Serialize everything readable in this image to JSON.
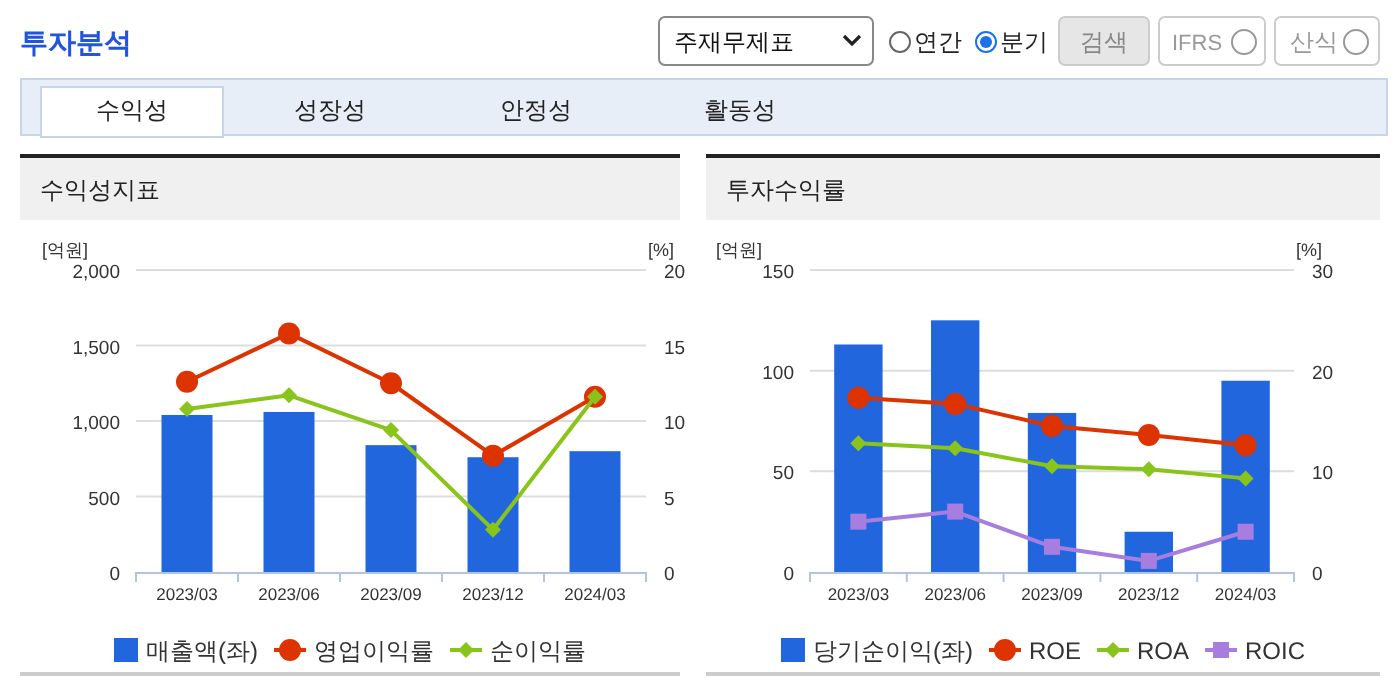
{
  "chart_data": [
    {
      "type": "other",
      "title": "투자분석",
      "annotations": [
        "주재무제표",
        "연간",
        "분기",
        "검색",
        "IFRS",
        "산식",
        "수익성",
        "성장성",
        "안정성",
        "활동성"
      ]
    },
    {
      "type": "bar",
      "title": "수익성지표",
      "ylabel": "[억원]",
      "y2label": "[%]",
      "categories": [
        "2023/03",
        "2023/06",
        "2023/09",
        "2023/12",
        "2024/03"
      ],
      "series": [
        {
          "name": "매출액(좌)",
          "type": "bar",
          "color": "#2266dd",
          "values": [
            1040,
            1060,
            840,
            760,
            800
          ]
        },
        {
          "name": "영업이익률",
          "type": "line",
          "axis": "y2",
          "color": "#dd3300",
          "marker": "circle",
          "values": [
            12.6,
            15.8,
            12.5,
            7.7,
            11.6
          ]
        },
        {
          "name": "순이익률",
          "type": "line",
          "axis": "y2",
          "color": "#88c41a",
          "marker": "diamond",
          "values": [
            10.8,
            11.7,
            9.4,
            2.8,
            11.6
          ]
        }
      ],
      "ylim": [
        0,
        2000
      ],
      "yticks": [
        0,
        {
          "value": 500,
          "label": "500"
        },
        {
          "value": 1000,
          "label": "1,000"
        },
        {
          "value": 1500,
          "label": "1,500"
        },
        {
          "value": 2000,
          "label": "2,000"
        }
      ],
      "y2lim": [
        0,
        20
      ],
      "y2ticks": [
        0,
        5,
        10,
        15,
        20
      ],
      "grid": "y",
      "legend": "bottom"
    },
    {
      "type": "bar",
      "title": "투자수익률",
      "ylabel": "[억원]",
      "y2label": "[%]",
      "categories": [
        "2023/03",
        "2023/06",
        "2023/09",
        "2023/12",
        "2024/03"
      ],
      "series": [
        {
          "name": "당기순이익(좌)",
          "type": "bar",
          "color": "#2266dd",
          "values": [
            113,
            125,
            79,
            20,
            95
          ]
        },
        {
          "name": "ROE",
          "type": "line",
          "axis": "y2",
          "color": "#dd3300",
          "marker": "circle",
          "values": [
            17.3,
            16.7,
            14.5,
            13.6,
            12.6
          ]
        },
        {
          "name": "ROA",
          "type": "line",
          "axis": "y2",
          "color": "#88c41a",
          "marker": "diamond",
          "values": [
            12.8,
            12.3,
            10.5,
            10.2,
            9.3
          ]
        },
        {
          "name": "ROIC",
          "type": "line",
          "axis": "y2",
          "color": "#a77ee0",
          "marker": "square",
          "values": [
            5.0,
            6.0,
            2.5,
            1.1,
            4.0
          ]
        }
      ],
      "ylim": [
        0,
        150
      ],
      "yticks": [
        0,
        50,
        100,
        150
      ],
      "y2lim": [
        0,
        30
      ],
      "y2ticks": [
        0,
        10,
        20,
        30
      ],
      "grid": "y",
      "legend": "bottom"
    }
  ]
}
